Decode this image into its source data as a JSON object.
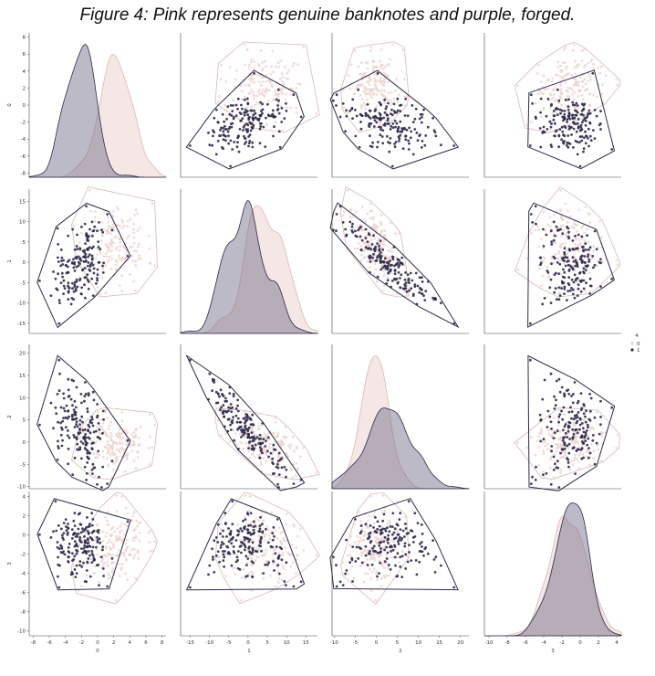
{
  "title": "Figure 4: Pink represents genuine banknotes and purple, forged.",
  "colors": {
    "genuine": "#ecd3d0",
    "genuine_line": "#d9b9b4",
    "forged": "#2e2a4a",
    "forged_fill": "#6b6580",
    "axis": "#444444"
  },
  "chart_data": {
    "type": "scatter",
    "kind": "pairplot",
    "variables": [
      "0",
      "1",
      "2",
      "3"
    ],
    "ranges": {
      "0": [
        -8.5,
        8.5
      ],
      "1": [
        -17.5,
        18
      ],
      "2": [
        -10.5,
        22
      ],
      "3": [
        -10.5,
        4.5
      ]
    },
    "ticks": {
      "0": [
        -8,
        -6,
        -4,
        -2,
        0,
        2,
        4,
        6,
        8
      ],
      "1": [
        -15,
        -10,
        -5,
        0,
        5,
        10,
        15
      ],
      "2": [
        -10,
        -5,
        0,
        5,
        10,
        15,
        20
      ],
      "3": [
        -10,
        -8,
        -6,
        -4,
        -2,
        0,
        2,
        4
      ]
    },
    "hue": "4",
    "legend": {
      "title": "4",
      "placement": "right",
      "entries": [
        {
          "label": "0",
          "color": "#ecd3d0"
        },
        {
          "label": "1",
          "color": "#2e2a4a"
        }
      ]
    },
    "series": [
      {
        "class": "0",
        "means": [
          2.3,
          4.3,
          0.8,
          -1.2
        ],
        "sds": [
          2.0,
          5.1,
          3.2,
          2.1
        ]
      },
      {
        "class": "1",
        "means": [
          -1.9,
          -1.0,
          2.1,
          -1.25
        ],
        "sds": [
          1.9,
          5.4,
          5.3,
          2.1
        ]
      }
    ]
  }
}
